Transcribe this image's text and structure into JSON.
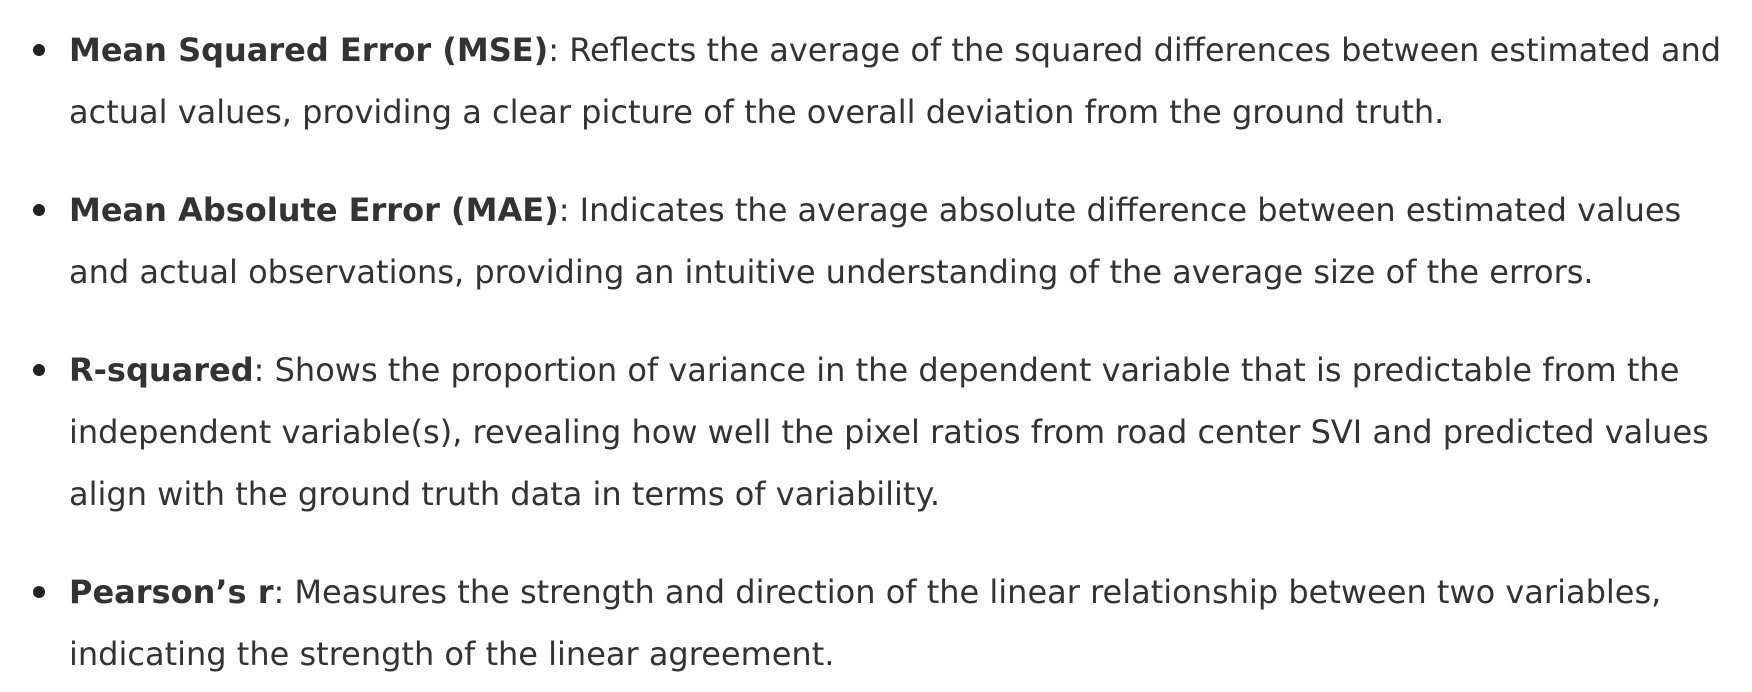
{
  "metrics": [
    {
      "term": "Mean Squared Error (MSE)",
      "separator": ":",
      "description": " Reflects the average of the squared differences between estimated and actual values, providing a clear picture of the overall deviation from the ground truth."
    },
    {
      "term": "Mean Absolute Error (MAE)",
      "separator": ":",
      "description": " Indicates the average absolute difference between estimated values and actual observations, providing an intuitive understanding of the average size of the errors."
    },
    {
      "term": "R-squared",
      "separator": ":",
      "description": " Shows the proportion of variance in the dependent variable that is predictable from the independent variable(s), revealing how well the pixel ratios from road center SVI and predicted values align with the ground truth data in terms of variability."
    },
    {
      "term": "Pearson’s r",
      "separator": ":",
      "description": " Measures the strength and direction of the linear relationship between two variables, indicating the strength of the linear agreement."
    }
  ]
}
